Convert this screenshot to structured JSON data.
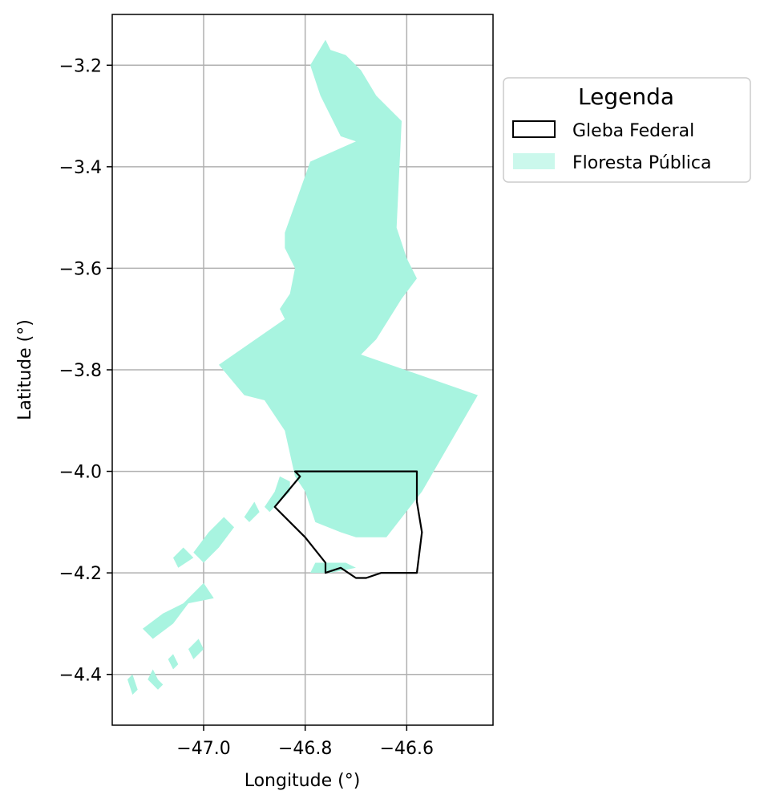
{
  "chart_data": {
    "type": "map",
    "xlabel": "Longitude (°)",
    "ylabel": "Latitude (°)",
    "xlim": [
      -47.18,
      -46.43
    ],
    "ylim": [
      -4.5,
      -3.1
    ],
    "xticks": [
      -47.0,
      -46.8,
      -46.6
    ],
    "xtick_labels": [
      "−47.0",
      "−46.8",
      "−46.6"
    ],
    "yticks": [
      -3.2,
      -3.4,
      -3.6,
      -3.8,
      -4.0,
      -4.2,
      -4.4
    ],
    "ytick_labels": [
      "−3.2",
      "−3.4",
      "−3.6",
      "−3.8",
      "−4.0",
      "−4.2",
      "−4.4"
    ],
    "grid": true,
    "legend": {
      "title": "Legenda",
      "placement": "outside-upper-right",
      "entries": [
        {
          "label": "Gleba Federal",
          "style": "outline",
          "color": "#000000"
        },
        {
          "label": "Floresta Pública",
          "style": "fill",
          "color": "#a8f4e0"
        }
      ]
    },
    "colors": {
      "floresta_publica": "#a8f4e0",
      "gleba_federal": "#000000",
      "grid": "#b0b0b0"
    },
    "layers": [
      {
        "name": "Floresta Pública",
        "kind": "fill",
        "polygons": [
          [
            [
              -46.76,
              -3.15
            ],
            [
              -46.75,
              -3.17
            ],
            [
              -46.72,
              -3.18
            ],
            [
              -46.69,
              -3.21
            ],
            [
              -46.66,
              -3.26
            ],
            [
              -46.63,
              -3.29
            ],
            [
              -46.61,
              -3.31
            ],
            [
              -46.62,
              -3.52
            ],
            [
              -46.6,
              -3.58
            ],
            [
              -46.58,
              -3.62
            ],
            [
              -46.61,
              -3.66
            ],
            [
              -46.66,
              -3.74
            ],
            [
              -46.69,
              -3.77
            ],
            [
              -46.46,
              -3.85
            ],
            [
              -46.57,
              -4.04
            ],
            [
              -46.64,
              -4.13
            ],
            [
              -46.7,
              -4.13
            ],
            [
              -46.73,
              -4.12
            ],
            [
              -46.78,
              -4.1
            ],
            [
              -46.8,
              -4.04
            ],
            [
              -46.82,
              -4.01
            ],
            [
              -46.84,
              -3.92
            ],
            [
              -46.88,
              -3.86
            ],
            [
              -46.92,
              -3.85
            ],
            [
              -46.97,
              -3.79
            ],
            [
              -46.84,
              -3.7
            ],
            [
              -46.85,
              -3.68
            ],
            [
              -46.83,
              -3.65
            ],
            [
              -46.82,
              -3.6
            ],
            [
              -46.84,
              -3.56
            ],
            [
              -46.84,
              -3.53
            ],
            [
              -46.79,
              -3.39
            ],
            [
              -46.7,
              -3.35
            ],
            [
              -46.73,
              -3.34
            ],
            [
              -46.77,
              -3.26
            ],
            [
              -46.79,
              -3.2
            ],
            [
              -46.76,
              -3.15
            ]
          ],
          [
            [
              -46.85,
              -4.01
            ],
            [
              -46.83,
              -4.02
            ],
            [
              -46.83,
              -4.04
            ],
            [
              -46.85,
              -4.06
            ],
            [
              -46.87,
              -4.08
            ],
            [
              -46.88,
              -4.07
            ],
            [
              -46.86,
              -4.04
            ],
            [
              -46.85,
              -4.01
            ]
          ],
          [
            [
              -46.9,
              -4.06
            ],
            [
              -46.89,
              -4.08
            ],
            [
              -46.91,
              -4.1
            ],
            [
              -46.92,
              -4.09
            ],
            [
              -46.9,
              -4.06
            ]
          ],
          [
            [
              -46.96,
              -4.09
            ],
            [
              -46.94,
              -4.11
            ],
            [
              -46.97,
              -4.15
            ],
            [
              -47.0,
              -4.18
            ],
            [
              -47.02,
              -4.16
            ],
            [
              -46.99,
              -4.12
            ],
            [
              -46.96,
              -4.09
            ]
          ],
          [
            [
              -47.04,
              -4.15
            ],
            [
              -47.02,
              -4.17
            ],
            [
              -47.05,
              -4.19
            ],
            [
              -47.06,
              -4.17
            ],
            [
              -47.04,
              -4.15
            ]
          ],
          [
            [
              -46.78,
              -4.18
            ],
            [
              -46.72,
              -4.18
            ],
            [
              -46.7,
              -4.19
            ],
            [
              -46.75,
              -4.2
            ],
            [
              -46.79,
              -4.2
            ],
            [
              -46.78,
              -4.18
            ]
          ],
          [
            [
              -47.0,
              -4.22
            ],
            [
              -46.98,
              -4.25
            ],
            [
              -47.03,
              -4.26
            ],
            [
              -47.06,
              -4.3
            ],
            [
              -47.1,
              -4.33
            ],
            [
              -47.12,
              -4.31
            ],
            [
              -47.08,
              -4.28
            ],
            [
              -47.04,
              -4.26
            ],
            [
              -47.0,
              -4.22
            ]
          ],
          [
            [
              -47.01,
              -4.33
            ],
            [
              -47.0,
              -4.35
            ],
            [
              -47.02,
              -4.37
            ],
            [
              -47.03,
              -4.35
            ],
            [
              -47.01,
              -4.33
            ]
          ],
          [
            [
              -47.06,
              -4.36
            ],
            [
              -47.05,
              -4.38
            ],
            [
              -47.06,
              -4.39
            ],
            [
              -47.07,
              -4.37
            ],
            [
              -47.06,
              -4.36
            ]
          ],
          [
            [
              -47.1,
              -4.39
            ],
            [
              -47.09,
              -4.41
            ],
            [
              -47.08,
              -4.42
            ],
            [
              -47.09,
              -4.43
            ],
            [
              -47.11,
              -4.41
            ],
            [
              -47.1,
              -4.39
            ]
          ],
          [
            [
              -47.14,
              -4.4
            ],
            [
              -47.13,
              -4.43
            ],
            [
              -47.14,
              -4.44
            ],
            [
              -47.15,
              -4.41
            ],
            [
              -47.14,
              -4.4
            ]
          ]
        ]
      },
      {
        "name": "Gleba Federal",
        "kind": "outline",
        "polygons": [
          [
            [
              -46.82,
              -4.0
            ],
            [
              -46.58,
              -4.0
            ],
            [
              -46.58,
              -4.06
            ],
            [
              -46.57,
              -4.12
            ],
            [
              -46.58,
              -4.2
            ],
            [
              -46.65,
              -4.2
            ],
            [
              -46.68,
              -4.21
            ],
            [
              -46.7,
              -4.21
            ],
            [
              -46.73,
              -4.19
            ],
            [
              -46.76,
              -4.2
            ],
            [
              -46.76,
              -4.18
            ],
            [
              -46.8,
              -4.13
            ],
            [
              -46.86,
              -4.07
            ],
            [
              -46.81,
              -4.01
            ],
            [
              -46.82,
              -4.0
            ]
          ]
        ]
      }
    ]
  }
}
